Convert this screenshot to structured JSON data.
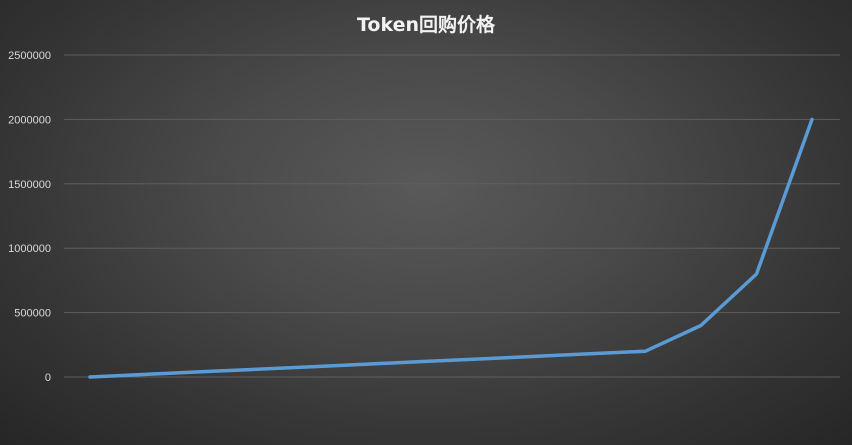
{
  "chart_data": {
    "type": "line",
    "title": "Token回购价格",
    "xlabel": "",
    "ylabel": "",
    "ylim": [
      0,
      2500000
    ],
    "yticks": [
      "0",
      "500000",
      "1000000",
      "1500000",
      "2000000",
      "2500000"
    ],
    "grid": true,
    "legend": "none",
    "x": [
      1,
      2,
      3,
      4,
      5,
      6,
      7,
      8,
      9,
      10,
      11,
      12,
      13,
      14
    ],
    "series": [
      {
        "color": "#5b9bd5",
        "values": [
          0,
          20000,
          40000,
          60000,
          80000,
          100000,
          120000,
          140000,
          160000,
          180000,
          200000,
          400000,
          800000,
          2000000
        ]
      }
    ]
  }
}
